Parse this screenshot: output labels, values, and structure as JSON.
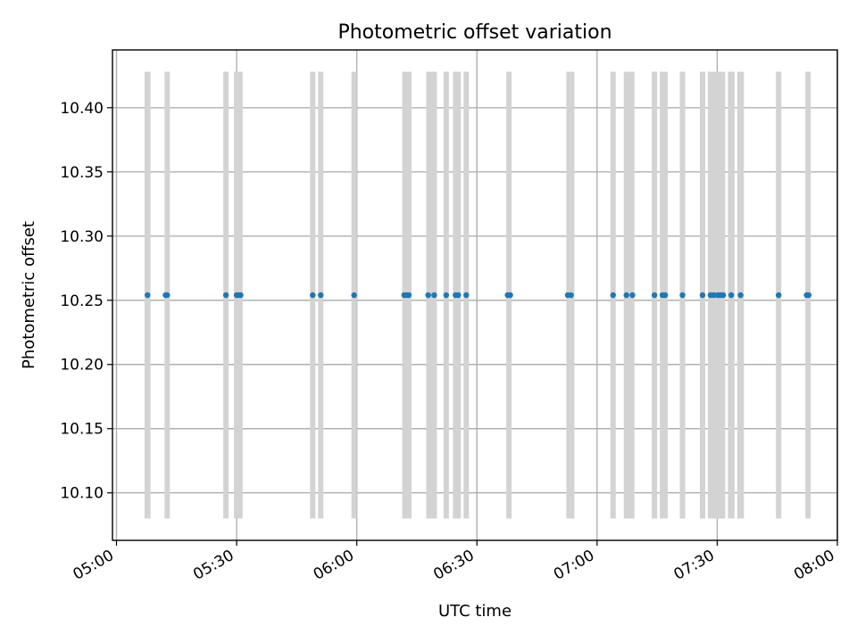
{
  "chart_data": {
    "type": "scatter",
    "title": "Photometric offset variation",
    "xlabel": "UTC time",
    "ylabel": "Photometric offset",
    "xlim": [
      "04:59",
      "08:00"
    ],
    "ylim": [
      10.063,
      10.445
    ],
    "x_ticks": [
      "05:00",
      "05:30",
      "06:00",
      "06:30",
      "07:00",
      "07:30",
      "08:00"
    ],
    "y_ticks": [
      "10.10",
      "10.15",
      "10.20",
      "10.25",
      "10.30",
      "10.35",
      "10.40"
    ],
    "grid": true,
    "marker_color": "#1f77b4",
    "band_color": "#d3d3d3",
    "band_range": [
      10.08,
      10.428
    ],
    "bands": [
      [
        "05:07:00",
        "05:08:30"
      ],
      [
        "05:12:00",
        "05:13:20"
      ],
      [
        "05:26:40",
        "05:28:00"
      ],
      [
        "05:29:20",
        "05:31:30"
      ],
      [
        "05:48:20",
        "05:49:40"
      ],
      [
        "05:50:20",
        "05:51:40"
      ],
      [
        "05:58:40",
        "06:00:00"
      ],
      [
        "06:11:20",
        "06:13:40"
      ],
      [
        "06:17:20",
        "06:20:00"
      ],
      [
        "06:21:40",
        "06:23:00"
      ],
      [
        "06:24:00",
        "06:26:00"
      ],
      [
        "06:26:40",
        "06:28:00"
      ],
      [
        "06:37:20",
        "06:38:40"
      ],
      [
        "06:52:20",
        "06:54:20"
      ],
      [
        "07:03:20",
        "07:04:40"
      ],
      [
        "07:06:40",
        "07:09:20"
      ],
      [
        "07:13:40",
        "07:15:00"
      ],
      [
        "07:15:40",
        "07:17:40"
      ],
      [
        "07:20:40",
        "07:22:00"
      ],
      [
        "07:25:40",
        "07:27:00"
      ],
      [
        "07:27:40",
        "07:32:00"
      ],
      [
        "07:32:40",
        "07:34:20"
      ],
      [
        "07:35:00",
        "07:36:40"
      ],
      [
        "07:44:40",
        "07:46:00"
      ],
      [
        "07:52:00",
        "07:53:20"
      ]
    ],
    "points": {
      "x": [
        "05:07:45",
        "05:12:15",
        "05:12:40",
        "05:27:20",
        "05:30:00",
        "05:30:30",
        "05:31:00",
        "05:49:00",
        "05:51:00",
        "05:59:20",
        "06:11:50",
        "06:12:30",
        "06:13:00",
        "06:17:50",
        "06:19:20",
        "06:22:20",
        "06:24:40",
        "06:25:20",
        "06:27:20",
        "06:37:40",
        "06:38:20",
        "06:52:40",
        "06:53:30",
        "07:04:00",
        "07:07:20",
        "07:08:50",
        "07:14:20",
        "07:16:20",
        "07:17:00",
        "07:21:20",
        "07:26:20",
        "07:28:20",
        "07:29:10",
        "07:30:10",
        "07:30:50",
        "07:31:30",
        "07:33:30",
        "07:35:50",
        "07:45:20",
        "07:52:20",
        "07:52:50"
      ],
      "y": [
        10.254,
        10.254,
        10.254,
        10.254,
        10.254,
        10.254,
        10.254,
        10.254,
        10.254,
        10.254,
        10.254,
        10.254,
        10.254,
        10.254,
        10.254,
        10.254,
        10.254,
        10.254,
        10.254,
        10.254,
        10.254,
        10.254,
        10.254,
        10.254,
        10.254,
        10.254,
        10.254,
        10.254,
        10.254,
        10.254,
        10.254,
        10.254,
        10.254,
        10.254,
        10.254,
        10.254,
        10.254,
        10.254,
        10.254,
        10.254,
        10.254
      ]
    }
  }
}
